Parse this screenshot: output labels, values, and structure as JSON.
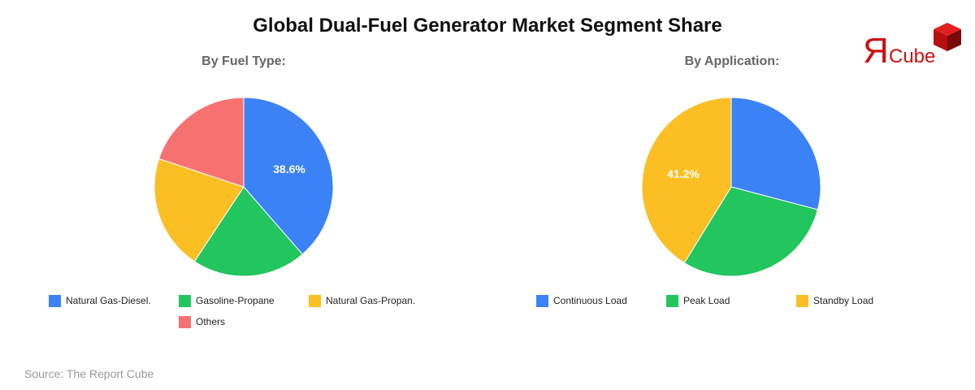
{
  "title": "Global Dual-Fuel Generator Market Segment Share",
  "logo": {
    "text_r": "Я",
    "text_cube": "Cube",
    "color": "#CC0000"
  },
  "source": "Source: The Report Cube",
  "colors": {
    "blue": "#3B82F6",
    "green": "#22C55E",
    "yellow": "#FBBF24",
    "red": "#F87171"
  },
  "charts": [
    {
      "subtitle": "By Fuel Type:",
      "shown_label": "38.6%",
      "legend": [
        {
          "label": "Natural Gas-Diesel.",
          "color": "#3B82F6"
        },
        {
          "label": "Gasoline-Propane",
          "color": "#22C55E"
        },
        {
          "label": "Natural Gas-Propan.",
          "color": "#FBBF24"
        },
        {
          "label": "Others",
          "color": "#F87171"
        }
      ]
    },
    {
      "subtitle": "By Application:",
      "shown_label": "41.2%",
      "legend": [
        {
          "label": "Continuous Load",
          "color": "#3B82F6"
        },
        {
          "label": "Peak Load",
          "color": "#22C55E"
        },
        {
          "label": "Standby Load",
          "color": "#FBBF24"
        }
      ]
    }
  ],
  "chart_data": [
    {
      "type": "pie",
      "title": "Global Dual-Fuel Generator Market Segment Share — By Fuel Type",
      "categories": [
        "Natural Gas-Diesel.",
        "Gasoline-Propane",
        "Natural Gas-Propan.",
        "Others"
      ],
      "values": [
        38.6,
        20.7,
        20.8,
        19.9
      ],
      "colors": [
        "#3B82F6",
        "#22C55E",
        "#FBBF24",
        "#F87171"
      ],
      "data_labels": [
        "38.6%",
        "",
        "",
        ""
      ],
      "start_angle": 0,
      "direction": "clockwise",
      "legend_position": "bottom"
    },
    {
      "type": "pie",
      "title": "Global Dual-Fuel Generator Market Segment Share — By Application",
      "categories": [
        "Continuous Load",
        "Peak Load",
        "Standby Load"
      ],
      "values": [
        29.1,
        29.7,
        41.2
      ],
      "colors": [
        "#3B82F6",
        "#22C55E",
        "#FBBF24"
      ],
      "data_labels": [
        "",
        "",
        "41.2%"
      ],
      "start_angle": 0,
      "direction": "clockwise",
      "legend_position": "bottom"
    }
  ]
}
